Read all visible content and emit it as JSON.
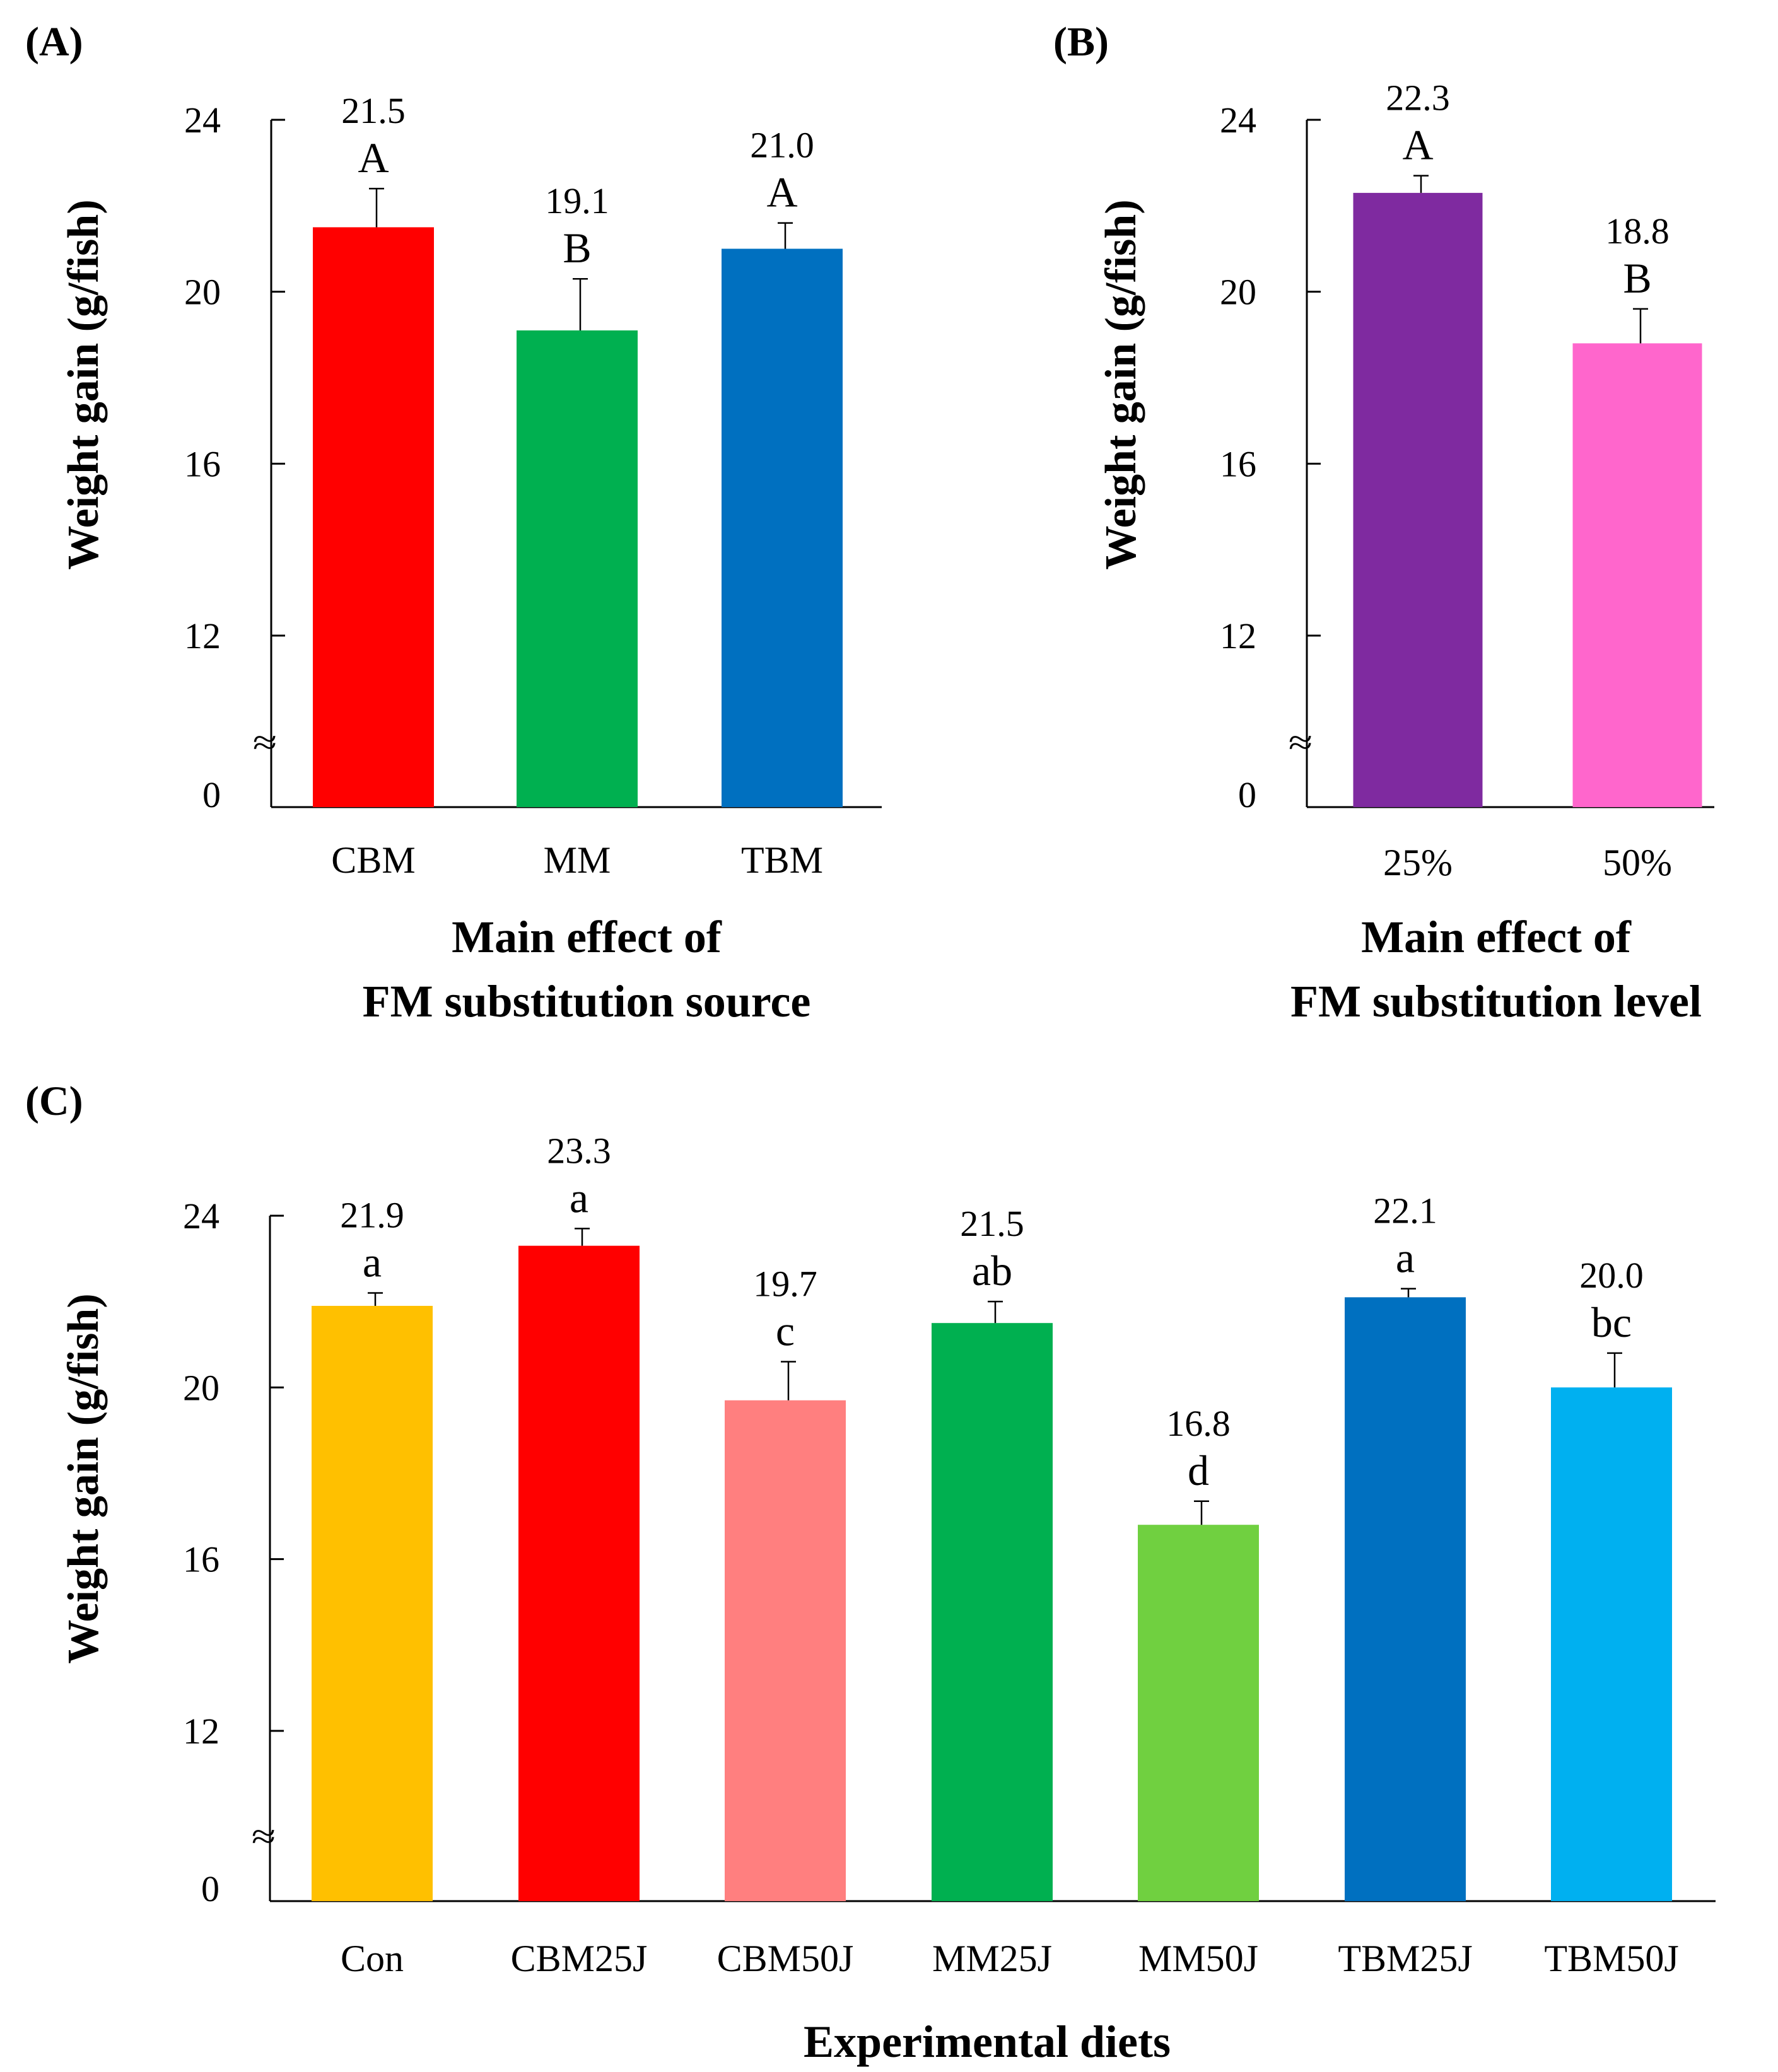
{
  "figure": {
    "panel_labels": {
      "A": "(A)",
      "B": "(B)",
      "C": "(C)"
    },
    "axis_break_symbol": "≈"
  },
  "chart_data": [
    {
      "id": "A",
      "type": "bar",
      "title": "",
      "xlabel": [
        "Main effect of",
        "FM substitution source"
      ],
      "ylabel": "Weight gain (g/fish)",
      "categories": [
        "CBM",
        "MM",
        "TBM"
      ],
      "values": [
        21.5,
        19.1,
        21.0
      ],
      "value_labels": [
        "21.5",
        "19.1",
        "21.0"
      ],
      "errors": [
        0.9,
        1.2,
        0.6
      ],
      "significance": [
        "A",
        "B",
        "A"
      ],
      "colors": [
        "#ff0000",
        "#00b050",
        "#0070c0"
      ],
      "ylim": [
        0,
        24
      ],
      "yticks": [
        0,
        12,
        16,
        20,
        24
      ],
      "ytick_labels": [
        "0",
        "12",
        "16",
        "20",
        "24"
      ],
      "axis_break": [
        0,
        10
      ]
    },
    {
      "id": "B",
      "type": "bar",
      "title": "",
      "xlabel": [
        "Main effect of",
        "FM substitution level"
      ],
      "ylabel": "Weight gain (g/fish)",
      "categories": [
        "25%",
        "50%"
      ],
      "values": [
        22.3,
        18.8
      ],
      "value_labels": [
        "22.3",
        "18.8"
      ],
      "errors": [
        0.4,
        0.8
      ],
      "significance": [
        "A",
        "B"
      ],
      "colors": [
        "#7f2aa0",
        "#ff66cc"
      ],
      "ylim": [
        0,
        24
      ],
      "yticks": [
        0,
        12,
        16,
        20,
        24
      ],
      "ytick_labels": [
        "0",
        "12",
        "16",
        "20",
        "24"
      ],
      "axis_break": [
        0,
        10
      ]
    },
    {
      "id": "C",
      "type": "bar",
      "title": "",
      "xlabel": [
        "Experimental diets"
      ],
      "ylabel": "Weight gain (g/fish)",
      "categories": [
        "Con",
        "CBM25J",
        "CBM50J",
        "MM25J",
        "MM50J",
        "TBM25J",
        "TBM50J"
      ],
      "values": [
        21.9,
        23.3,
        19.7,
        21.5,
        16.8,
        22.1,
        20.0
      ],
      "value_labels": [
        "21.9",
        "23.3",
        "19.7",
        "21.5",
        "16.8",
        "22.1",
        "20.0"
      ],
      "errors": [
        0.3,
        0.4,
        0.9,
        0.5,
        0.55,
        0.2,
        0.8
      ],
      "significance": [
        "a",
        "a",
        "c",
        "ab",
        "d",
        "a",
        "bc"
      ],
      "colors": [
        "#ffc000",
        "#ff0000",
        "#ff7f7f",
        "#00b050",
        "#70d040",
        "#0070c0",
        "#00b0f0"
      ],
      "ylim": [
        0,
        24
      ],
      "yticks": [
        0,
        12,
        16,
        20,
        24
      ],
      "ytick_labels": [
        "0",
        "12",
        "16",
        "20",
        "24"
      ],
      "axis_break": [
        0,
        10
      ]
    }
  ]
}
